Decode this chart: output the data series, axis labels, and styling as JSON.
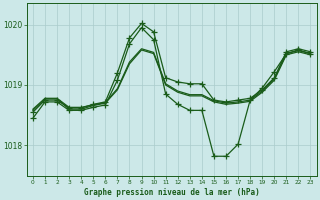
{
  "bg_color": "#cce8e8",
  "grid_color": "#aacccc",
  "line_color": "#1a5c1a",
  "title": "Graphe pression niveau de la mer (hPa)",
  "xlim": [
    -0.5,
    23.5
  ],
  "ylim": [
    1017.5,
    1020.35
  ],
  "yticks": [
    1018,
    1019,
    1020
  ],
  "xticks": [
    0,
    1,
    2,
    3,
    4,
    5,
    6,
    7,
    8,
    9,
    10,
    11,
    12,
    13,
    14,
    15,
    16,
    17,
    18,
    19,
    20,
    21,
    22,
    23
  ],
  "series": [
    {
      "x": [
        0,
        1,
        2,
        3,
        4,
        5,
        6,
        7,
        8,
        9,
        10,
        11,
        12,
        13,
        14,
        15,
        16,
        17,
        18,
        19,
        20,
        21,
        22,
        23
      ],
      "y": [
        1018.55,
        1018.75,
        1018.75,
        1018.62,
        1018.62,
        1018.68,
        1018.72,
        1019.2,
        1019.78,
        1020.02,
        1019.88,
        1019.12,
        1019.05,
        1019.02,
        1019.02,
        1018.75,
        1018.72,
        1018.75,
        1018.78,
        1018.92,
        1019.12,
        1019.55,
        1019.6,
        1019.55
      ],
      "lw": 0.9,
      "ls": "-",
      "marker": true
    },
    {
      "x": [
        0,
        1,
        2,
        3,
        4,
        5,
        6,
        7,
        8,
        9,
        10,
        11,
        12,
        13,
        14,
        15,
        16,
        17,
        18,
        19,
        20,
        21,
        22,
        23
      ],
      "y": [
        1018.58,
        1018.77,
        1018.77,
        1018.6,
        1018.6,
        1018.66,
        1018.7,
        1018.92,
        1019.35,
        1019.58,
        1019.52,
        1019.0,
        1018.88,
        1018.82,
        1018.82,
        1018.72,
        1018.68,
        1018.7,
        1018.73,
        1018.88,
        1019.08,
        1019.5,
        1019.55,
        1019.5
      ],
      "lw": 0.9,
      "ls": "-",
      "marker": false
    },
    {
      "x": [
        0,
        1,
        2,
        3,
        4,
        5,
        6,
        7,
        8,
        9,
        10,
        11,
        12,
        13,
        14,
        15,
        16,
        17,
        18,
        19,
        20,
        21,
        22,
        23
      ],
      "y": [
        1018.6,
        1018.78,
        1018.78,
        1018.63,
        1018.63,
        1018.67,
        1018.71,
        1018.94,
        1019.38,
        1019.6,
        1019.54,
        1019.02,
        1018.9,
        1018.84,
        1018.84,
        1018.74,
        1018.7,
        1018.72,
        1018.75,
        1018.9,
        1019.1,
        1019.52,
        1019.57,
        1019.52
      ],
      "lw": 0.9,
      "ls": "-",
      "marker": false
    },
    {
      "x": [
        0,
        1,
        2,
        3,
        4,
        5,
        6,
        7,
        8,
        9,
        10,
        11,
        12,
        13,
        14,
        15,
        16,
        17,
        18,
        19,
        20,
        21,
        22,
        23
      ],
      "y": [
        1018.45,
        1018.72,
        1018.72,
        1018.58,
        1018.58,
        1018.63,
        1018.67,
        1019.08,
        1019.68,
        1019.95,
        1019.75,
        1018.85,
        1018.68,
        1018.58,
        1018.58,
        1017.82,
        1017.82,
        1018.02,
        1018.75,
        1018.95,
        1019.22,
        1019.52,
        1019.58,
        1019.52
      ],
      "lw": 0.9,
      "ls": "-",
      "marker": true
    }
  ]
}
